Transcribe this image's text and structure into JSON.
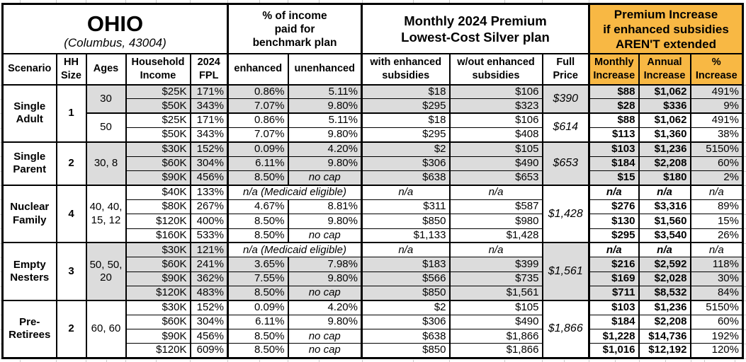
{
  "title": {
    "state": "OHIO",
    "location": "(Columbus, 43004)"
  },
  "section_headers": {
    "income_pct": "% of income\npaid for\nbenchmark plan",
    "premium": "Monthly 2024 Premium\nLowest-Cost Silver plan",
    "increase": "Premium Increase\nif enhanced subsidies\nAREN'T extended"
  },
  "column_headers": {
    "scenario": "Scenario",
    "hh_size": "HH\nSize",
    "ages": "Ages",
    "income": "Household\nIncome",
    "fpl": "2024\nFPL",
    "enhanced": "enhanced",
    "unenhanced": "unenhanced",
    "with_sub": "with enhanced\nsubsidies",
    "wout_sub": "w/out enhanced\nsubsidies",
    "full_price": "Full\nPrice",
    "monthly": "Monthly\nIncrease",
    "annual": "Annual\nIncrease",
    "pct": "%\nIncrease"
  },
  "colors": {
    "header_accent": "#F8B844",
    "row_shade": "#DCDCDC",
    "border": "#000000",
    "background": "#FFFFFF"
  },
  "special_values": {
    "medicaid": "n/a (Medicaid eligible)",
    "not_applicable": "n/a",
    "no_cap": "no cap"
  },
  "table": {
    "groups": [
      {
        "scenario": "Single\nAdult",
        "hh_size": "1",
        "subgroups": [
          {
            "ages": "30",
            "shaded": true,
            "full_price": "$390",
            "rows": [
              {
                "income": "$25K",
                "fpl": "171%",
                "enhanced": "0.86%",
                "unenhanced": "5.11%",
                "with_sub": "$18",
                "wout_sub": "$106",
                "monthly": "$88",
                "annual": "$1,062",
                "pct": "491%"
              },
              {
                "income": "$50K",
                "fpl": "343%",
                "enhanced": "7.07%",
                "unenhanced": "9.80%",
                "with_sub": "$295",
                "wout_sub": "$323",
                "monthly": "$28",
                "annual": "$336",
                "pct": "9%"
              }
            ]
          },
          {
            "ages": "50",
            "shaded": false,
            "full_price": "$614",
            "rows": [
              {
                "income": "$25K",
                "fpl": "171%",
                "enhanced": "0.86%",
                "unenhanced": "5.11%",
                "with_sub": "$18",
                "wout_sub": "$106",
                "monthly": "$88",
                "annual": "$1,062",
                "pct": "491%"
              },
              {
                "income": "$50K",
                "fpl": "343%",
                "enhanced": "7.07%",
                "unenhanced": "9.80%",
                "with_sub": "$295",
                "wout_sub": "$408",
                "monthly": "$113",
                "annual": "$1,360",
                "pct": "38%"
              }
            ]
          }
        ]
      },
      {
        "scenario": "Single\nParent",
        "hh_size": "2",
        "subgroups": [
          {
            "ages": "30, 8",
            "shaded": true,
            "full_price": "$653",
            "rows": [
              {
                "income": "$30K",
                "fpl": "152%",
                "enhanced": "0.09%",
                "unenhanced": "4.20%",
                "with_sub": "$2",
                "wout_sub": "$105",
                "monthly": "$103",
                "annual": "$1,236",
                "pct": "5150%"
              },
              {
                "income": "$60K",
                "fpl": "304%",
                "enhanced": "6.11%",
                "unenhanced": "9.80%",
                "with_sub": "$306",
                "wout_sub": "$490",
                "monthly": "$184",
                "annual": "$2,208",
                "pct": "60%"
              },
              {
                "income": "$90K",
                "fpl": "456%",
                "enhanced": "8.50%",
                "unenhanced": "no cap",
                "with_sub": "$638",
                "wout_sub": "$653",
                "monthly": "$15",
                "annual": "$180",
                "pct": "2%"
              }
            ]
          }
        ]
      },
      {
        "scenario": "Nuclear\nFamily",
        "hh_size": "4",
        "subgroups": [
          {
            "ages": "40, 40,\n15, 12",
            "shaded": false,
            "full_price": "$1,428",
            "rows": [
              {
                "medicaid": true,
                "income": "$40K",
                "fpl": "133%"
              },
              {
                "income": "$80K",
                "fpl": "267%",
                "enhanced": "4.67%",
                "unenhanced": "8.81%",
                "with_sub": "$311",
                "wout_sub": "$587",
                "monthly": "$276",
                "annual": "$3,316",
                "pct": "89%"
              },
              {
                "income": "$120K",
                "fpl": "400%",
                "enhanced": "8.50%",
                "unenhanced": "9.80%",
                "with_sub": "$850",
                "wout_sub": "$980",
                "monthly": "$130",
                "annual": "$1,560",
                "pct": "15%"
              },
              {
                "income": "$160K",
                "fpl": "533%",
                "enhanced": "8.50%",
                "unenhanced": "no cap",
                "with_sub": "$1,133",
                "wout_sub": "$1,428",
                "monthly": "$295",
                "annual": "$3,540",
                "pct": "26%"
              }
            ]
          }
        ]
      },
      {
        "scenario": "Empty\nNesters",
        "hh_size": "3",
        "subgroups": [
          {
            "ages": "50, 50,\n20",
            "shaded": true,
            "full_price": "$1,561",
            "rows": [
              {
                "medicaid": true,
                "income": "$30K",
                "fpl": "121%"
              },
              {
                "income": "$60K",
                "fpl": "241%",
                "enhanced": "3.65%",
                "unenhanced": "7.98%",
                "with_sub": "$183",
                "wout_sub": "$399",
                "monthly": "$216",
                "annual": "$2,592",
                "pct": "118%"
              },
              {
                "income": "$90K",
                "fpl": "362%",
                "enhanced": "7.55%",
                "unenhanced": "9.80%",
                "with_sub": "$566",
                "wout_sub": "$735",
                "monthly": "$169",
                "annual": "$2,028",
                "pct": "30%"
              },
              {
                "income": "$120K",
                "fpl": "483%",
                "enhanced": "8.50%",
                "unenhanced": "no cap",
                "with_sub": "$850",
                "wout_sub": "$1,561",
                "monthly": "$711",
                "annual": "$8,532",
                "pct": "84%"
              }
            ]
          }
        ]
      },
      {
        "scenario": "Pre-\nRetirees",
        "hh_size": "2",
        "subgroups": [
          {
            "ages": "60, 60",
            "shaded": false,
            "full_price": "$1,866",
            "rows": [
              {
                "income": "$30K",
                "fpl": "152%",
                "enhanced": "0.09%",
                "unenhanced": "4.20%",
                "with_sub": "$2",
                "wout_sub": "$105",
                "monthly": "$103",
                "annual": "$1,236",
                "pct": "5150%"
              },
              {
                "income": "$60K",
                "fpl": "304%",
                "enhanced": "6.11%",
                "unenhanced": "9.80%",
                "with_sub": "$306",
                "wout_sub": "$490",
                "monthly": "$184",
                "annual": "$2,208",
                "pct": "60%"
              },
              {
                "income": "$90K",
                "fpl": "456%",
                "enhanced": "8.50%",
                "unenhanced": "no cap",
                "with_sub": "$638",
                "wout_sub": "$1,866",
                "monthly": "$1,228",
                "annual": "$14,736",
                "pct": "192%"
              },
              {
                "income": "$120K",
                "fpl": "609%",
                "enhanced": "8.50%",
                "unenhanced": "no cap",
                "with_sub": "$850",
                "wout_sub": "$1,866",
                "monthly": "$1,016",
                "annual": "$12,192",
                "pct": "120%"
              }
            ]
          }
        ]
      }
    ]
  },
  "chart_data": {
    "type": "table",
    "title": "OHIO (Columbus, 43004) — Monthly 2024 Premium, Lowest-Cost Silver plan — Premium Increase if enhanced subsidies AREN'T extended",
    "columns": [
      "Scenario",
      "HH Size",
      "Ages",
      "Household Income",
      "2024 FPL",
      "% of income paid for benchmark plan: enhanced",
      "% of income paid for benchmark plan: unenhanced",
      "Monthly 2024 Premium with enhanced subsidies",
      "Monthly 2024 Premium w/out enhanced subsidies",
      "Full Price",
      "Monthly Increase",
      "Annual Increase",
      "% Increase"
    ],
    "rows": [
      [
        "Single Adult",
        "1",
        "30",
        "$25K",
        "171%",
        "0.86%",
        "5.11%",
        "$18",
        "$106",
        "$390",
        "$88",
        "$1,062",
        "491%"
      ],
      [
        "Single Adult",
        "1",
        "30",
        "$50K",
        "343%",
        "7.07%",
        "9.80%",
        "$295",
        "$323",
        "$390",
        "$28",
        "$336",
        "9%"
      ],
      [
        "Single Adult",
        "1",
        "50",
        "$25K",
        "171%",
        "0.86%",
        "5.11%",
        "$18",
        "$106",
        "$614",
        "$88",
        "$1,062",
        "491%"
      ],
      [
        "Single Adult",
        "1",
        "50",
        "$50K",
        "343%",
        "7.07%",
        "9.80%",
        "$295",
        "$408",
        "$614",
        "$113",
        "$1,360",
        "38%"
      ],
      [
        "Single Parent",
        "2",
        "30, 8",
        "$30K",
        "152%",
        "0.09%",
        "4.20%",
        "$2",
        "$105",
        "$653",
        "$103",
        "$1,236",
        "5150%"
      ],
      [
        "Single Parent",
        "2",
        "30, 8",
        "$60K",
        "304%",
        "6.11%",
        "9.80%",
        "$306",
        "$490",
        "$653",
        "$184",
        "$2,208",
        "60%"
      ],
      [
        "Single Parent",
        "2",
        "30, 8",
        "$90K",
        "456%",
        "8.50%",
        "no cap",
        "$638",
        "$653",
        "$653",
        "$15",
        "$180",
        "2%"
      ],
      [
        "Nuclear Family",
        "4",
        "40, 40, 15, 12",
        "$40K",
        "133%",
        "n/a (Medicaid eligible)",
        "n/a (Medicaid eligible)",
        "n/a",
        "n/a",
        "$1,428",
        "n/a",
        "n/a",
        "n/a"
      ],
      [
        "Nuclear Family",
        "4",
        "40, 40, 15, 12",
        "$80K",
        "267%",
        "4.67%",
        "8.81%",
        "$311",
        "$587",
        "$1,428",
        "$276",
        "$3,316",
        "89%"
      ],
      [
        "Nuclear Family",
        "4",
        "40, 40, 15, 12",
        "$120K",
        "400%",
        "8.50%",
        "9.80%",
        "$850",
        "$980",
        "$1,428",
        "$130",
        "$1,560",
        "15%"
      ],
      [
        "Nuclear Family",
        "4",
        "40, 40, 15, 12",
        "$160K",
        "533%",
        "8.50%",
        "no cap",
        "$1,133",
        "$1,428",
        "$1,428",
        "$295",
        "$3,540",
        "26%"
      ],
      [
        "Empty Nesters",
        "3",
        "50, 50, 20",
        "$30K",
        "121%",
        "n/a (Medicaid eligible)",
        "n/a (Medicaid eligible)",
        "n/a",
        "n/a",
        "$1,561",
        "n/a",
        "n/a",
        "n/a"
      ],
      [
        "Empty Nesters",
        "3",
        "50, 50, 20",
        "$60K",
        "241%",
        "3.65%",
        "7.98%",
        "$183",
        "$399",
        "$1,561",
        "$216",
        "$2,592",
        "118%"
      ],
      [
        "Empty Nesters",
        "3",
        "50, 50, 20",
        "$90K",
        "362%",
        "7.55%",
        "9.80%",
        "$566",
        "$735",
        "$1,561",
        "$169",
        "$2,028",
        "30%"
      ],
      [
        "Empty Nesters",
        "3",
        "50, 50, 20",
        "$120K",
        "483%",
        "8.50%",
        "no cap",
        "$850",
        "$1,561",
        "$1,561",
        "$711",
        "$8,532",
        "84%"
      ],
      [
        "Pre-Retirees",
        "2",
        "60, 60",
        "$30K",
        "152%",
        "0.09%",
        "4.20%",
        "$2",
        "$105",
        "$1,866",
        "$103",
        "$1,236",
        "5150%"
      ],
      [
        "Pre-Retirees",
        "2",
        "60, 60",
        "$60K",
        "304%",
        "6.11%",
        "9.80%",
        "$306",
        "$490",
        "$1,866",
        "$184",
        "$2,208",
        "60%"
      ],
      [
        "Pre-Retirees",
        "2",
        "60, 60",
        "$90K",
        "456%",
        "8.50%",
        "no cap",
        "$638",
        "$1,866",
        "$1,866",
        "$1,228",
        "$14,736",
        "192%"
      ],
      [
        "Pre-Retirees",
        "2",
        "60, 60",
        "$120K",
        "609%",
        "8.50%",
        "no cap",
        "$850",
        "$1,866",
        "$1,866",
        "$1,016",
        "$12,192",
        "120%"
      ]
    ]
  }
}
